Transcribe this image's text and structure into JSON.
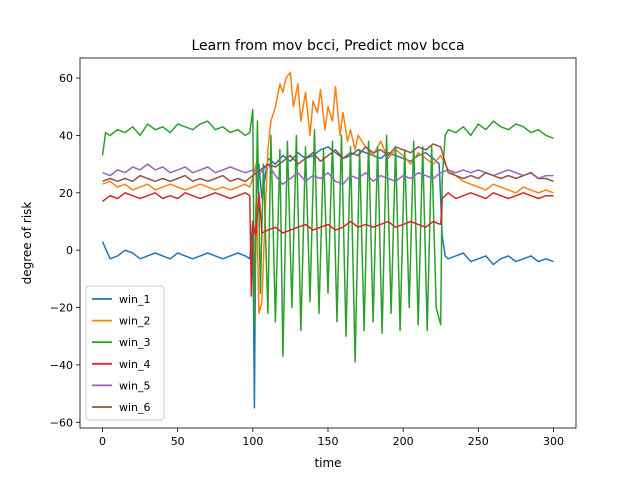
{
  "chart_data": {
    "type": "line",
    "title": "Learn from mov bcci, Predict mov bcca",
    "xlabel": "time",
    "ylabel": "degree of risk",
    "xlim": [
      -15,
      315
    ],
    "ylim": [
      -62,
      67
    ],
    "xticks": [
      0,
      50,
      100,
      150,
      200,
      250,
      300
    ],
    "yticks": [
      -60,
      -40,
      -20,
      0,
      20,
      40,
      60
    ],
    "grid": false,
    "legend_position": "lower-left",
    "series": [
      {
        "name": "win_1",
        "color": "#1f77b4",
        "x": [
          0,
          5,
          10,
          15,
          20,
          25,
          30,
          35,
          40,
          45,
          50,
          55,
          60,
          65,
          70,
          75,
          80,
          85,
          90,
          95,
          98,
          100,
          101,
          102,
          104,
          106,
          108,
          110,
          115,
          120,
          125,
          130,
          135,
          140,
          145,
          150,
          155,
          160,
          165,
          170,
          175,
          180,
          185,
          190,
          195,
          200,
          205,
          210,
          215,
          220,
          224,
          226,
          228,
          230,
          235,
          240,
          245,
          250,
          255,
          260,
          265,
          270,
          275,
          280,
          285,
          290,
          295,
          300
        ],
        "y": [
          3,
          -3,
          -2,
          0,
          -1,
          -3,
          -2,
          -1,
          -2,
          -3,
          -1,
          -2,
          -3,
          -2,
          -1,
          -2,
          -3,
          -2,
          -1,
          -2,
          -3,
          10,
          -55,
          15,
          30,
          18,
          25,
          32,
          30,
          33,
          31,
          34,
          32,
          33,
          35,
          36,
          34,
          32,
          33,
          35,
          34,
          33,
          32,
          34,
          33,
          32,
          31,
          33,
          34,
          32,
          30,
          5,
          -2,
          -3,
          -2,
          -1,
          -4,
          -3,
          -2,
          -5,
          -3,
          -2,
          -4,
          -3,
          -2,
          -4,
          -3,
          -4
        ]
      },
      {
        "name": "win_2",
        "color": "#ff7f0e",
        "x": [
          0,
          5,
          10,
          15,
          20,
          25,
          30,
          35,
          40,
          45,
          50,
          55,
          60,
          65,
          70,
          75,
          80,
          85,
          90,
          95,
          98,
          100,
          102,
          104,
          106,
          108,
          110,
          112,
          115,
          118,
          120,
          122,
          125,
          127,
          130,
          132,
          135,
          138,
          140,
          143,
          145,
          148,
          150,
          153,
          155,
          158,
          160,
          163,
          165,
          168,
          170,
          175,
          180,
          185,
          190,
          195,
          200,
          205,
          210,
          215,
          220,
          225,
          230,
          235,
          240,
          245,
          250,
          255,
          260,
          265,
          270,
          275,
          280,
          285,
          290,
          295,
          300
        ],
        "y": [
          23,
          24,
          22,
          23,
          21,
          22,
          23,
          21,
          22,
          23,
          22,
          21,
          22,
          23,
          22,
          21,
          22,
          21,
          22,
          23,
          22,
          25,
          30,
          -22,
          -18,
          10,
          35,
          45,
          50,
          58,
          55,
          60,
          62,
          50,
          58,
          45,
          55,
          40,
          52,
          48,
          56,
          42,
          50,
          45,
          57,
          40,
          48,
          38,
          42,
          35,
          40,
          36,
          33,
          38,
          32,
          35,
          33,
          30,
          34,
          32,
          30,
          33,
          28,
          26,
          24,
          23,
          22,
          21,
          23,
          22,
          21,
          20,
          22,
          21,
          20,
          21,
          20
        ]
      },
      {
        "name": "win_3",
        "color": "#2ca02c",
        "x": [
          0,
          2,
          5,
          10,
          15,
          20,
          25,
          30,
          35,
          40,
          45,
          50,
          55,
          60,
          65,
          70,
          75,
          80,
          85,
          90,
          95,
          98,
          100,
          101,
          103,
          105,
          107,
          110,
          112,
          115,
          118,
          120,
          123,
          126,
          129,
          132,
          135,
          138,
          141,
          144,
          147,
          150,
          153,
          156,
          159,
          162,
          165,
          168,
          171,
          174,
          177,
          180,
          183,
          186,
          189,
          192,
          195,
          198,
          201,
          204,
          207,
          210,
          213,
          216,
          219,
          222,
          225,
          226,
          228,
          230,
          235,
          240,
          245,
          250,
          255,
          260,
          265,
          270,
          275,
          280,
          285,
          290,
          295,
          300
        ],
        "y": [
          33,
          41,
          40,
          42,
          41,
          43,
          40,
          44,
          42,
          43,
          41,
          44,
          43,
          42,
          44,
          45,
          42,
          43,
          41,
          42,
          40,
          41,
          49,
          -27,
          45,
          -15,
          30,
          -22,
          40,
          -25,
          35,
          -37,
          38,
          -20,
          40,
          -28,
          36,
          -18,
          42,
          -22,
          35,
          -15,
          38,
          -25,
          40,
          -30,
          36,
          -39,
          35,
          -28,
          38,
          -25,
          36,
          -29,
          40,
          -22,
          36,
          -28,
          35,
          -20,
          38,
          -26,
          36,
          -28,
          36,
          -20,
          -26,
          25,
          40,
          42,
          41,
          43,
          40,
          44,
          42,
          45,
          43,
          42,
          44,
          43,
          41,
          42,
          40,
          39
        ]
      },
      {
        "name": "win_4",
        "color": "#d62728",
        "x": [
          0,
          5,
          10,
          15,
          20,
          25,
          30,
          35,
          40,
          45,
          50,
          55,
          60,
          65,
          70,
          75,
          80,
          85,
          90,
          95,
          98,
          99,
          100,
          102,
          104,
          106,
          110,
          115,
          120,
          125,
          130,
          135,
          140,
          145,
          150,
          155,
          160,
          165,
          170,
          175,
          180,
          185,
          190,
          195,
          200,
          205,
          210,
          215,
          220,
          225,
          226,
          228,
          230,
          235,
          240,
          245,
          250,
          255,
          260,
          265,
          270,
          275,
          280,
          285,
          290,
          295,
          300
        ],
        "y": [
          17,
          19,
          18,
          20,
          19,
          18,
          19,
          20,
          18,
          19,
          18,
          20,
          19,
          18,
          19,
          20,
          19,
          18,
          19,
          20,
          19,
          -16,
          10,
          5,
          20,
          6,
          7,
          8,
          6,
          7,
          8,
          9,
          7,
          8,
          9,
          7,
          8,
          10,
          8,
          9,
          8,
          9,
          10,
          8,
          9,
          10,
          9,
          8,
          10,
          9,
          18,
          19,
          20,
          18,
          19,
          20,
          19,
          18,
          20,
          19,
          18,
          19,
          20,
          19,
          18,
          19,
          19
        ]
      },
      {
        "name": "win_5",
        "color": "#9467bd",
        "x": [
          0,
          5,
          10,
          15,
          20,
          25,
          30,
          35,
          40,
          45,
          50,
          55,
          60,
          65,
          70,
          75,
          80,
          85,
          90,
          95,
          100,
          105,
          110,
          115,
          120,
          125,
          130,
          135,
          140,
          145,
          150,
          155,
          160,
          165,
          170,
          175,
          180,
          185,
          190,
          195,
          200,
          205,
          210,
          215,
          220,
          225,
          230,
          235,
          240,
          245,
          250,
          255,
          260,
          265,
          270,
          275,
          280,
          285,
          290,
          295,
          300
        ],
        "y": [
          27,
          26,
          28,
          27,
          29,
          28,
          30,
          28,
          29,
          27,
          28,
          29,
          27,
          28,
          29,
          27,
          28,
          29,
          28,
          27,
          28,
          27,
          30,
          26,
          23,
          25,
          27,
          24,
          26,
          25,
          27,
          24,
          23,
          26,
          25,
          27,
          24,
          26,
          25,
          24,
          26,
          25,
          27,
          26,
          25,
          27,
          28,
          27,
          28,
          27,
          28,
          27,
          26,
          27,
          28,
          27,
          26,
          27,
          25,
          26,
          26
        ]
      },
      {
        "name": "win_6",
        "color": "#8c564b",
        "x": [
          0,
          5,
          10,
          15,
          20,
          25,
          30,
          35,
          40,
          45,
          50,
          55,
          60,
          65,
          70,
          75,
          80,
          85,
          90,
          95,
          100,
          105,
          110,
          115,
          120,
          125,
          130,
          135,
          140,
          145,
          150,
          155,
          160,
          165,
          170,
          175,
          180,
          185,
          190,
          195,
          200,
          205,
          210,
          215,
          220,
          225,
          230,
          235,
          240,
          245,
          250,
          255,
          260,
          265,
          270,
          275,
          280,
          285,
          290,
          295,
          300
        ],
        "y": [
          24,
          25,
          24,
          25,
          24,
          26,
          25,
          24,
          25,
          24,
          25,
          26,
          24,
          25,
          24,
          25,
          26,
          24,
          25,
          24,
          26,
          28,
          30,
          29,
          31,
          33,
          30,
          32,
          34,
          31,
          33,
          35,
          32,
          34,
          33,
          36,
          34,
          35,
          33,
          36,
          35,
          34,
          36,
          35,
          37,
          36,
          27,
          26,
          25,
          26,
          25,
          27,
          26,
          25,
          26,
          25,
          26,
          27,
          25,
          25,
          24
        ]
      }
    ]
  }
}
